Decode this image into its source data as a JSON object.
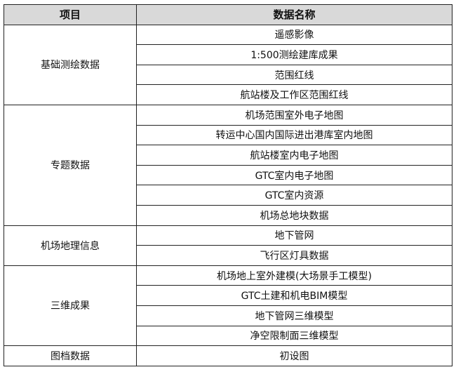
{
  "header": {
    "col1": "项目",
    "col2": "数据名称"
  },
  "groups": [
    {
      "name": "基础测绘数据",
      "items": [
        "遥感影像",
        "1:500测绘建库成果",
        "范围红线",
        "航站楼及工作区范围红线"
      ]
    },
    {
      "name": "专题数据",
      "items": [
        "机场范围室外电子地图",
        "转运中心国内国际进出港库室内地图",
        "航站楼室内电子地图",
        "GTC室内电子地图",
        "GTC室内资源",
        "机场总地块数据"
      ]
    },
    {
      "name": "机场地理信息",
      "items": [
        "地下管网",
        "飞行区灯具数据"
      ]
    },
    {
      "name": "三维成果",
      "items": [
        "机场地上室外建模(大场景手工模型)",
        "GTC土建和机电BIM模型",
        "地下管网三维模型",
        "净空限制面三维模型"
      ]
    },
    {
      "name": "图档数据",
      "items": [
        "初设图"
      ]
    }
  ],
  "colors": {
    "header_bg": "#d9d9d9",
    "border": "#222222"
  }
}
